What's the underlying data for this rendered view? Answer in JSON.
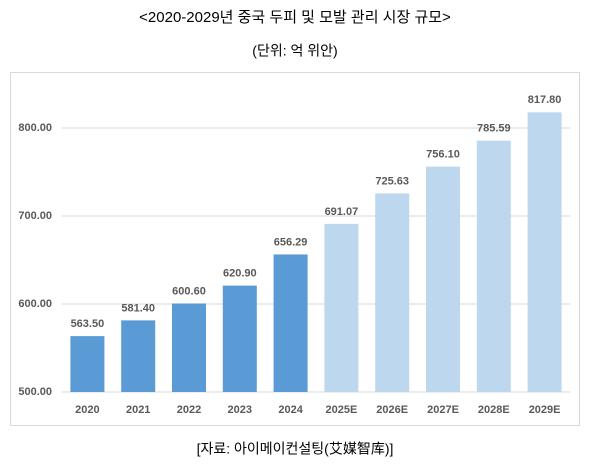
{
  "chart_data": {
    "type": "bar",
    "title": "<2020-2029년 중국 두피 및 모발 관리 시장 규모>",
    "subtitle": "(단위: 억 위안)",
    "source": "[자료: 아이메이컨설팅(艾媒智库)]",
    "categories": [
      "2020",
      "2021",
      "2022",
      "2023",
      "2024",
      "2025E",
      "2026E",
      "2027E",
      "2028E",
      "2029E"
    ],
    "values": [
      563.5,
      581.4,
      600.6,
      620.9,
      656.29,
      691.07,
      725.63,
      756.1,
      785.59,
      817.8
    ],
    "value_labels": [
      "563.50",
      "581.40",
      "600.60",
      "620.90",
      "656.29",
      "691.07",
      "725.63",
      "756.10",
      "785.59",
      "817.80"
    ],
    "colors": [
      "#5b9bd5",
      "#5b9bd5",
      "#5b9bd5",
      "#5b9bd5",
      "#5b9bd5",
      "#bdd7ee",
      "#bdd7ee",
      "#bdd7ee",
      "#bdd7ee",
      "#bdd7ee"
    ],
    "ylim": [
      500,
      850
    ],
    "yticks": [
      {
        "value": 500,
        "label": "500.00"
      },
      {
        "value": 600,
        "label": "600.00"
      },
      {
        "value": 700,
        "label": "700.00"
      },
      {
        "value": 800,
        "label": "800.00"
      }
    ],
    "grid": true
  }
}
